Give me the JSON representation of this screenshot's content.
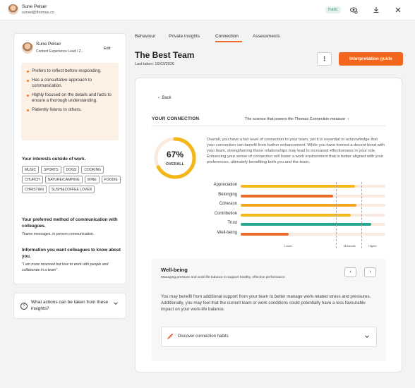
{
  "topbar": {
    "user_name": "Sune Pelser",
    "user_email": "suned@thomas.co",
    "badge": "Public",
    "icons": [
      "eye-refresh-icon",
      "download-icon",
      "close-icon"
    ]
  },
  "profile": {
    "name": "Sune Pelser",
    "role": "Content Experience Lead / Z...",
    "edit_label": "Edit",
    "traits": [
      "Prefers to reflect before responding.",
      "Has a consultative approach to communication.",
      "Highly focused on the details and facts to ensure a thorough understanding.",
      "Patiently listens to others."
    ],
    "interests_title": "Your interests outside of work.",
    "interests": [
      "MUSIC",
      "SPORTS",
      "DOGS",
      "COOKING",
      "CHURCH",
      "NATURE/CAMPING",
      "WINE",
      "FOODIE",
      "CHRISTIAN",
      "SUSHI&COFFEE LOVER"
    ],
    "comm_title": "Your preferred method of communication with colleagues.",
    "comm_value": "Teams messages, in person communication.",
    "info_title": "Information you want colleagues to know about you.",
    "info_value": "\"I am more reserved but love to work with people and collaborate in a team\""
  },
  "actions": {
    "question": "What actions can be taken from these insights?"
  },
  "tabs": [
    "Behaviour",
    "Private insights",
    "Connection",
    "Assessments"
  ],
  "active_tab": "Connection",
  "page": {
    "title": "The Best Team",
    "subtitle": "Last taken: 16/03/2026",
    "more_label": "⋮",
    "guide_label": "Interpretation guide"
  },
  "connection": {
    "back_label": "Back",
    "title": "YOUR CONNECTION",
    "science_link": "The science that powers the Thomas Connection measure",
    "percent": 67,
    "percent_label": "67%",
    "overall_label": "OVERALL",
    "paragraph": "Overall, you have a fair level of connection to your team, yet it is essential to acknowledge that your connection can benefit from further enhancement. While you have formed a decent bond with your team, strengthening these relationships may lead to increased effectiveness in your role. Enhancing your sense of connection will foster a work environment that is better aligned with your preferences, ultimately benefiting both you and the team.",
    "bars": [
      {
        "label": "Appreciation",
        "value": 0.79,
        "color": "#f5b618"
      },
      {
        "label": "Belonging",
        "value": 0.64,
        "color": "#ea6b2a"
      },
      {
        "label": "Cohesion",
        "value": 0.8,
        "color": "#f5a623"
      },
      {
        "label": "Contribution",
        "value": 0.76,
        "color": "#f5b618"
      },
      {
        "label": "Trust",
        "value": 0.9,
        "color": "#26a68f"
      },
      {
        "label": "Well-being",
        "value": 0.33,
        "color": "#ea6b2a"
      }
    ],
    "scale": [
      "Lower",
      "Moderate",
      "Higher"
    ]
  },
  "wellbeing": {
    "title": "Well-being",
    "subtitle": "Managing pressure and work-life balance to support healthy, effective performance.",
    "paragraph": "You may benefit from additional support from your team to better manage work-related stress and pressures. Additionally, you may feel that the current team or work conditions could potentially have a less favourable impact on your work-life balance.",
    "habits_label": "Discover connection habits"
  },
  "colors": {
    "accent": "#f2661e",
    "ring": "#f5b618",
    "ring_track": "#fbeadf"
  }
}
